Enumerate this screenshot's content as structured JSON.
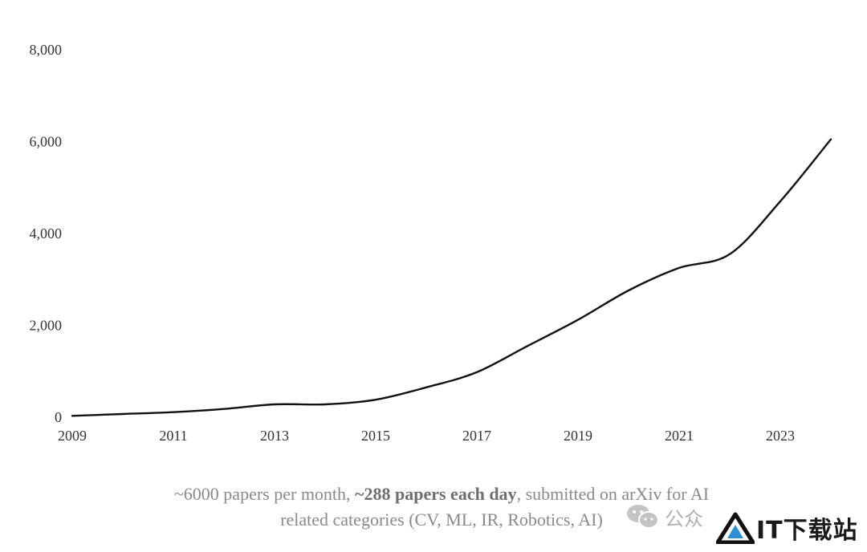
{
  "chart_data": {
    "type": "line",
    "title": "",
    "xlabel": "",
    "ylabel": "",
    "xlim": [
      2009,
      2024
    ],
    "ylim": [
      0,
      8000
    ],
    "x_ticks": [
      "2009",
      "2011",
      "2013",
      "2015",
      "2017",
      "2019",
      "2021",
      "2023"
    ],
    "y_ticks": [
      "0",
      "2,000",
      "4,000",
      "6,000",
      "8,000"
    ],
    "grid": false,
    "legend": "none",
    "series": [
      {
        "color": "#111111",
        "x": [
          2009,
          2010,
          2011,
          2012,
          2013,
          2014,
          2015,
          2016,
          2017,
          2018,
          2019,
          2020,
          2021,
          2022,
          2023,
          2024
        ],
        "values": [
          30,
          70,
          110,
          180,
          280,
          280,
          380,
          650,
          980,
          1550,
          2120,
          2760,
          3250,
          3550,
          4700,
          6050
        ]
      }
    ]
  },
  "caption": {
    "part1": "~6000 papers per month, ",
    "bold": "~288 papers each day",
    "part2": ", submitted on arXiv for AI",
    "line2": "related categories (CV, ML, IR, Robotics, AI)"
  },
  "watermarks": {
    "wechat_icon": "wechat-icon",
    "wechat_text": "公众",
    "logo_icon": "triangle-logo-icon",
    "logo_text": "IT下载站"
  }
}
